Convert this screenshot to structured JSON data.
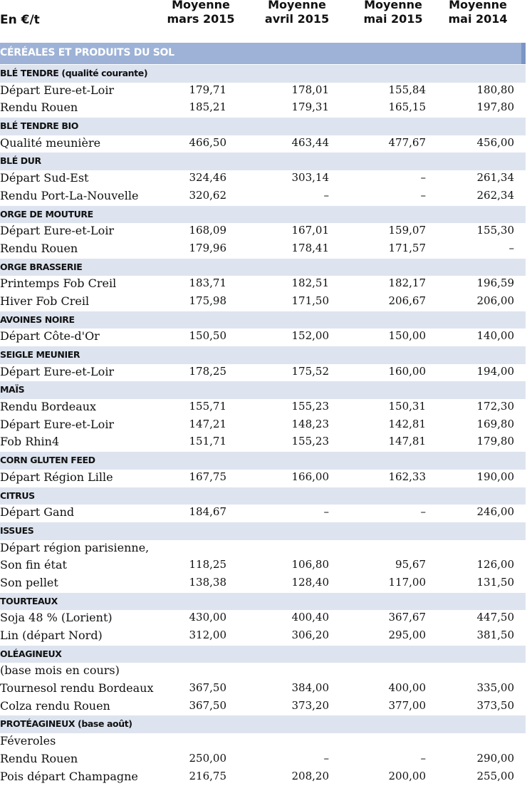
{
  "header": {
    "unit": "En €/t",
    "columns": [
      {
        "line1": "Moyenne",
        "line2": "mars 2015"
      },
      {
        "line1": "Moyenne",
        "line2": "avril 2015"
      },
      {
        "line1": "Moyenne",
        "line2": "mai 2015"
      },
      {
        "line1": "Moyenne",
        "line2": "mai 2014"
      }
    ]
  },
  "band": {
    "label": "CÉRÉALES ET PRODUITS DU SOL"
  },
  "rows": [
    {
      "kind": "section",
      "label": "BLÉ TENDRE (qualité courante)"
    },
    {
      "kind": "data",
      "label": "Départ Eure-et-Loir",
      "v1": "179,71",
      "v2": "178,01",
      "v3": "155,84",
      "v4": "180,80"
    },
    {
      "kind": "data",
      "label": "Rendu Rouen",
      "v1": "185,21",
      "v2": "179,31",
      "v3": "165,15",
      "v4": "197,80"
    },
    {
      "kind": "section",
      "label": "BLÉ TENDRE BIO"
    },
    {
      "kind": "data",
      "label": "Qualité meunière",
      "v1": "466,50",
      "v2": "463,44",
      "v3": "477,67",
      "v4": "456,00"
    },
    {
      "kind": "section",
      "label": "BLÉ DUR"
    },
    {
      "kind": "data",
      "label": "Départ Sud-Est",
      "v1": "324,46",
      "v2": "303,14",
      "v3": "–",
      "v4": "261,34"
    },
    {
      "kind": "data",
      "label": "Rendu Port-La-Nouvelle",
      "v1": "320,62",
      "v2": "–",
      "v3": "–",
      "v4": "262,34"
    },
    {
      "kind": "section",
      "label": "ORGE DE MOUTURE"
    },
    {
      "kind": "data",
      "label": "Départ Eure-et-Loir",
      "v1": "168,09",
      "v2": "167,01",
      "v3": "159,07",
      "v4": "155,30"
    },
    {
      "kind": "data",
      "label": "Rendu Rouen",
      "v1": "179,96",
      "v2": "178,41",
      "v3": "171,57",
      "v4": "–"
    },
    {
      "kind": "section",
      "label": "ORGE BRASSERIE"
    },
    {
      "kind": "data",
      "label": "Printemps Fob Creil",
      "v1": "183,71",
      "v2": "182,51",
      "v3": "182,17",
      "v4": "196,59"
    },
    {
      "kind": "data",
      "label": "Hiver Fob Creil",
      "v1": "175,98",
      "v2": "171,50",
      "v3": "206,67",
      "v4": "206,00"
    },
    {
      "kind": "section",
      "label": "AVOINES NOIRE"
    },
    {
      "kind": "data",
      "label": "Départ Côte-d'Or",
      "v1": "150,50",
      "v2": "152,00",
      "v3": "150,00",
      "v4": "140,00"
    },
    {
      "kind": "section",
      "label": "SEIGLE MEUNIER"
    },
    {
      "kind": "data",
      "label": "Départ Eure-et-Loir",
      "v1": "178,25",
      "v2": "175,52",
      "v3": "160,00",
      "v4": "194,00"
    },
    {
      "kind": "section",
      "label": "MAÏS"
    },
    {
      "kind": "data",
      "label": "Rendu Bordeaux",
      "v1": "155,71",
      "v2": "155,23",
      "v3": "150,31",
      "v4": "172,30"
    },
    {
      "kind": "data",
      "label": "Départ Eure-et-Loir",
      "v1": "147,21",
      "v2": "148,23",
      "v3": "142,81",
      "v4": "169,80"
    },
    {
      "kind": "data",
      "label": "Fob Rhin4",
      "v1": "151,71",
      "v2": "155,23",
      "v3": "147,81",
      "v4": "179,80"
    },
    {
      "kind": "section",
      "label": "CORN GLUTEN FEED"
    },
    {
      "kind": "data",
      "label": "Départ Région Lille",
      "v1": "167,75",
      "v2": "166,00",
      "v3": "162,33",
      "v4": "190,00"
    },
    {
      "kind": "section",
      "label": "CITRUS"
    },
    {
      "kind": "data",
      "label": "Départ Gand",
      "v1": "184,67",
      "v2": "–",
      "v3": "–",
      "v4": "246,00"
    },
    {
      "kind": "section",
      "label": "ISSUES"
    },
    {
      "kind": "data",
      "label": "Départ région parisienne,",
      "v1": "",
      "v2": "",
      "v3": "",
      "v4": ""
    },
    {
      "kind": "data",
      "label": "Son fin état",
      "v1": "118,25",
      "v2": "106,80",
      "v3": "95,67",
      "v4": "126,00"
    },
    {
      "kind": "data",
      "label": "Son pellet",
      "v1": "138,38",
      "v2": "128,40",
      "v3": "117,00",
      "v4": "131,50"
    },
    {
      "kind": "section",
      "label": "TOURTEAUX"
    },
    {
      "kind": "data",
      "label": "Soja 48 % (Lorient)",
      "v1": "430,00",
      "v2": "400,40",
      "v3": "367,67",
      "v4": "447,50"
    },
    {
      "kind": "data",
      "label": "Lin (départ Nord)",
      "v1": "312,00",
      "v2": "306,20",
      "v3": "295,00",
      "v4": "381,50"
    },
    {
      "kind": "section",
      "label": "OLÉAGINEUX"
    },
    {
      "kind": "data",
      "label": "(base mois en cours)",
      "v1": "",
      "v2": "",
      "v3": "",
      "v4": ""
    },
    {
      "kind": "data",
      "label": "Tournesol rendu Bordeaux",
      "v1": "367,50",
      "v2": "384,00",
      "v3": "400,00",
      "v4": "335,00"
    },
    {
      "kind": "data",
      "label": "Colza rendu Rouen",
      "v1": "367,50",
      "v2": "373,20",
      "v3": "377,00",
      "v4": "373,50"
    },
    {
      "kind": "section",
      "label": "PROTÉAGINEUX (base août)"
    },
    {
      "kind": "data",
      "label": "Féveroles",
      "v1": "",
      "v2": "",
      "v3": "",
      "v4": ""
    },
    {
      "kind": "data",
      "label": "Rendu Rouen",
      "v1": "250,00",
      "v2": "–",
      "v3": "–",
      "v4": "290,00"
    },
    {
      "kind": "data",
      "label": "Pois départ Champagne",
      "v1": "216,75",
      "v2": "208,20",
      "v3": "200,00",
      "v4": "255,00"
    }
  ]
}
